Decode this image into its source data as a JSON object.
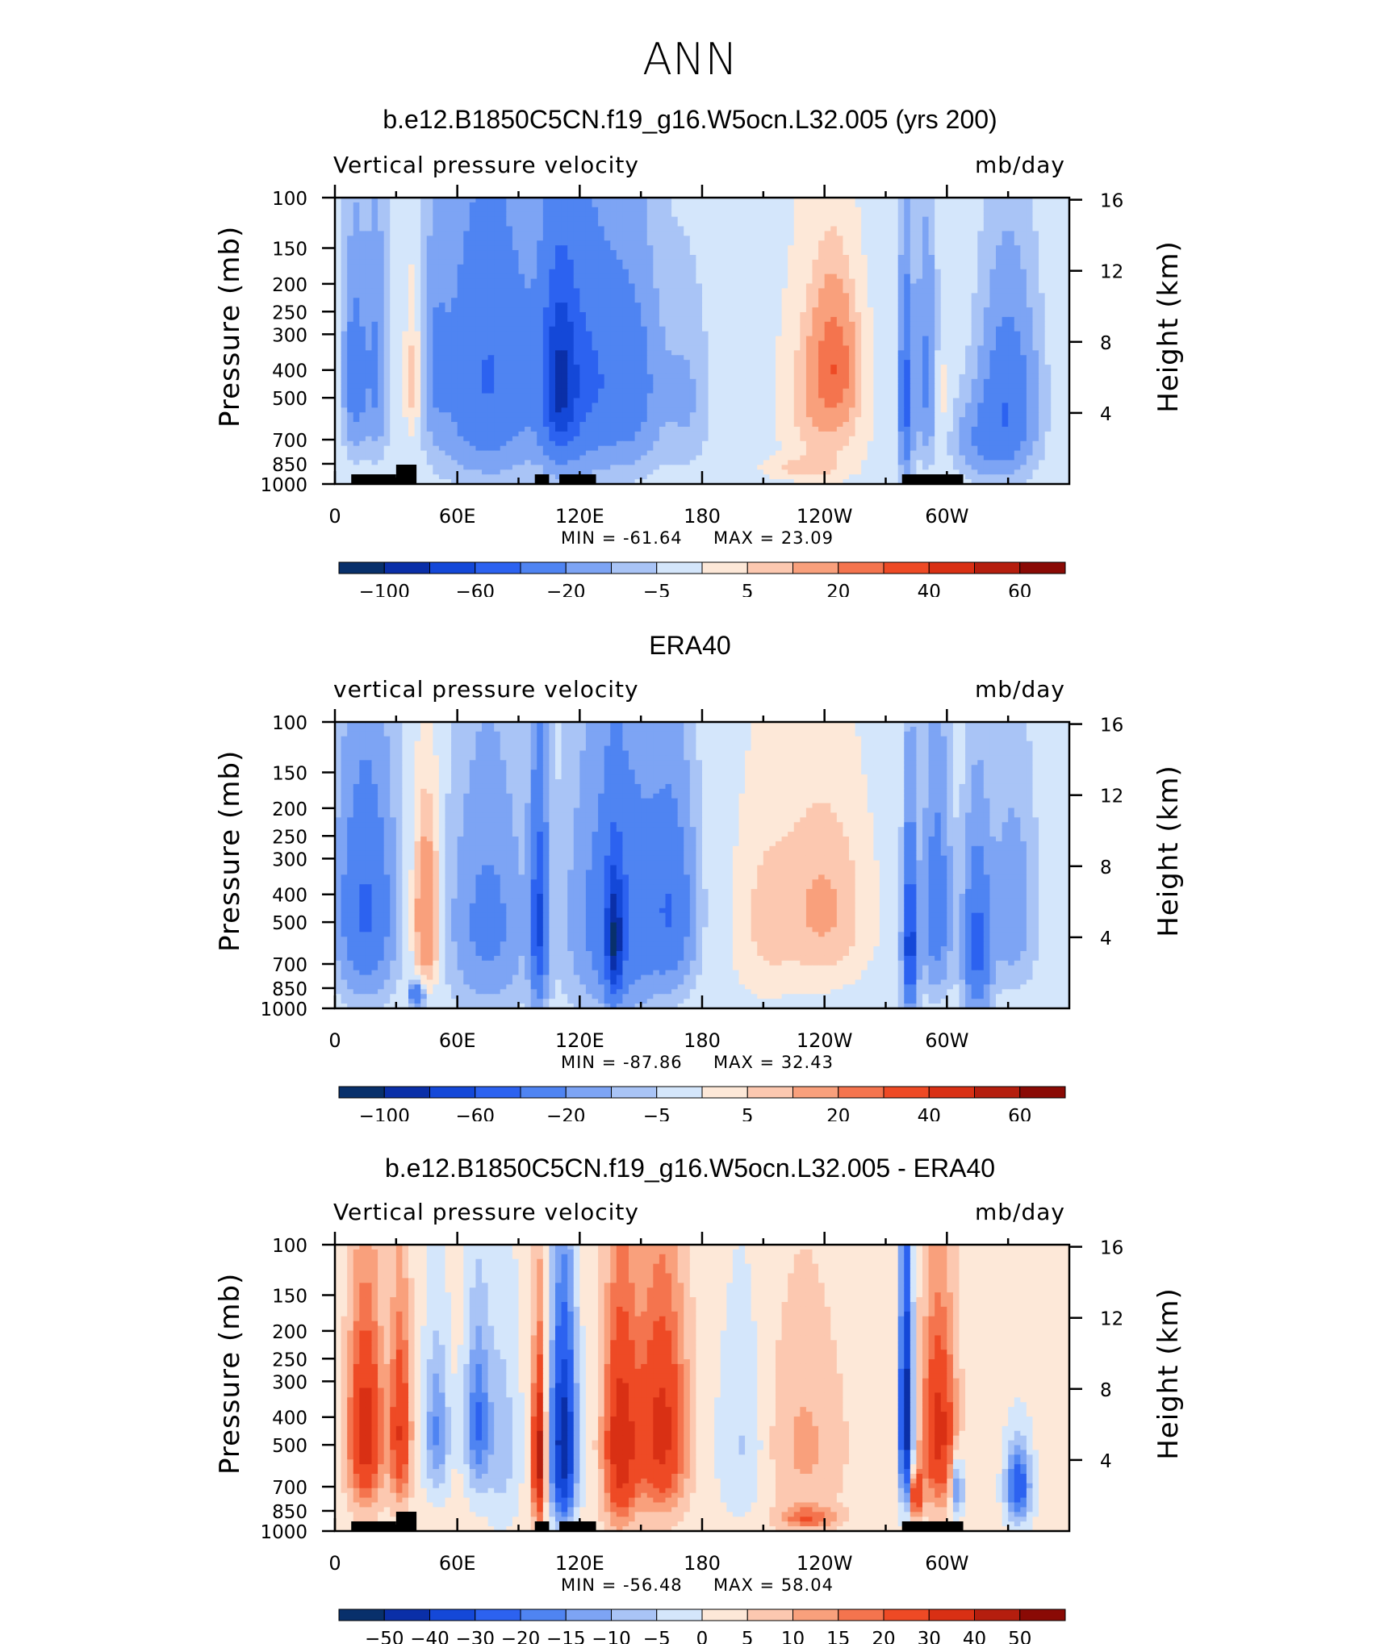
{
  "page_title": "ANN",
  "colors": {
    "palette_main": [
      "#08306b",
      "#0a2fa8",
      "#1448d8",
      "#2c62f0",
      "#4f84f2",
      "#7da4f4",
      "#a9c4f6",
      "#d4e6fb",
      "#fde8d8",
      "#fcc8b0",
      "#f9a07c",
      "#f4744e",
      "#ee4a25",
      "#d93014",
      "#b51e0e",
      "#8a0a05"
    ],
    "palette_diff": [
      "#08306b",
      "#0a2fa8",
      "#1448d8",
      "#2c62f0",
      "#4f84f2",
      "#7da4f4",
      "#a9c4f6",
      "#d4e6fb",
      "#fde8d8",
      "#fcc8b0",
      "#f9a07c",
      "#f4744e",
      "#ee4a25",
      "#d93014",
      "#b51e0e",
      "#8a0a05"
    ],
    "land": "#000000"
  },
  "chart_data": [
    {
      "type": "heatmap",
      "title": "b.e12.B1850C5CN.f19_g16.W5ocn.L32.005 (yrs 200)",
      "variable": "Vertical pressure velocity",
      "units": "mb/day",
      "ylabel_left": "Pressure (mb)",
      "ylabel_right": "Height (km)",
      "x_ticklabels": [
        "0",
        "60E",
        "120E",
        "180",
        "120W",
        "60W"
      ],
      "y_ticklabels": [
        "100",
        "150",
        "200",
        "250",
        "300",
        "400",
        "500",
        "700",
        "850",
        "1000"
      ],
      "height_ticklabels": [
        "16",
        "12",
        "8",
        "4"
      ],
      "min_label": "MIN = -61.64",
      "max_label": "MAX = 23.09",
      "colorbar_labels": [
        "-100",
        "-60",
        "-20",
        "-5",
        "5",
        "20",
        "40",
        "60"
      ],
      "palette": "main",
      "fields": [
        {
          "lon": 10,
          "p": 420,
          "w": 5,
          "h": 260,
          "v": -30
        },
        {
          "lon": 20,
          "p": 400,
          "w": 5,
          "h": 300,
          "v": -20
        },
        {
          "lon": 38,
          "p": 430,
          "w": 4,
          "h": 260,
          "v": 12
        },
        {
          "lon": 50,
          "p": 380,
          "w": 5,
          "h": 260,
          "v": -12
        },
        {
          "lon": 75,
          "p": 420,
          "w": 22,
          "h": 380,
          "v": -38
        },
        {
          "lon": 110,
          "p": 450,
          "w": 8,
          "h": 300,
          "v": -55
        },
        {
          "lon": 120,
          "p": 430,
          "w": 18,
          "h": 360,
          "v": -40
        },
        {
          "lon": 145,
          "p": 450,
          "w": 14,
          "h": 320,
          "v": -25
        },
        {
          "lon": 172,
          "p": 500,
          "w": 10,
          "h": 300,
          "v": -8
        },
        {
          "lon": 240,
          "p": 500,
          "w": 20,
          "h": 380,
          "v": 14
        },
        {
          "lon": 245,
          "p": 380,
          "w": 10,
          "h": 180,
          "v": 21
        },
        {
          "lon": 228,
          "p": 880,
          "w": 20,
          "h": 80,
          "v": 7
        },
        {
          "lon": 280,
          "p": 500,
          "w": 3,
          "h": 320,
          "v": -45
        },
        {
          "lon": 290,
          "p": 420,
          "w": 5,
          "h": 300,
          "v": -20
        },
        {
          "lon": 297,
          "p": 500,
          "w": 4,
          "h": 260,
          "v": 6
        },
        {
          "lon": 330,
          "p": 500,
          "w": 12,
          "h": 300,
          "v": -32
        },
        {
          "lon": 320,
          "p": 700,
          "w": 14,
          "h": 200,
          "v": -18
        }
      ],
      "land": [
        [
          8,
          30
        ],
        [
          30,
          40
        ],
        [
          98,
          105
        ],
        [
          110,
          128
        ],
        [
          278,
          308
        ]
      ],
      "land_raised": [
        [
          30,
          40
        ]
      ],
      "background": -3
    },
    {
      "type": "heatmap",
      "title": "ERA40",
      "variable": "vertical pressure velocity",
      "units": "mb/day",
      "ylabel_left": "Pressure (mb)",
      "ylabel_right": "Height (km)",
      "x_ticklabels": [
        "0",
        "60E",
        "120E",
        "180",
        "120W",
        "60W"
      ],
      "y_ticklabels": [
        "100",
        "150",
        "200",
        "250",
        "300",
        "400",
        "500",
        "700",
        "850",
        "1000"
      ],
      "height_ticklabels": [
        "16",
        "12",
        "8",
        "4"
      ],
      "min_label": "MIN = -87.86",
      "max_label": "MAX = 32.43",
      "colorbar_labels": [
        "-100",
        "-60",
        "-20",
        "-5",
        "5",
        "20",
        "40",
        "60"
      ],
      "palette": "main",
      "fields": [
        {
          "lon": 15,
          "p": 450,
          "w": 12,
          "h": 340,
          "v": -40
        },
        {
          "lon": 45,
          "p": 480,
          "w": 6,
          "h": 300,
          "v": 25
        },
        {
          "lon": 40,
          "p": 900,
          "w": 3,
          "h": 80,
          "v": -40
        },
        {
          "lon": 75,
          "p": 500,
          "w": 16,
          "h": 380,
          "v": -22
        },
        {
          "lon": 100,
          "p": 500,
          "w": 4,
          "h": 360,
          "v": -60
        },
        {
          "lon": 140,
          "p": 480,
          "w": 20,
          "h": 400,
          "v": -36
        },
        {
          "lon": 137,
          "p": 600,
          "w": 4,
          "h": 300,
          "v": -70
        },
        {
          "lon": 165,
          "p": 450,
          "w": 10,
          "h": 300,
          "v": -30
        },
        {
          "lon": 210,
          "p": 500,
          "w": 16,
          "h": 400,
          "v": 8
        },
        {
          "lon": 240,
          "p": 450,
          "w": 22,
          "h": 340,
          "v": 14
        },
        {
          "lon": 282,
          "p": 600,
          "w": 3,
          "h": 340,
          "v": -75
        },
        {
          "lon": 295,
          "p": 450,
          "w": 6,
          "h": 320,
          "v": -30
        },
        {
          "lon": 315,
          "p": 600,
          "w": 6,
          "h": 340,
          "v": -45
        },
        {
          "lon": 332,
          "p": 450,
          "w": 10,
          "h": 300,
          "v": -14
        }
      ],
      "land": [],
      "land_raised": [],
      "background": -3
    },
    {
      "type": "heatmap",
      "title": "b.e12.B1850C5CN.f19_g16.W5ocn.L32.005 - ERA40",
      "variable": "Vertical pressure velocity",
      "units": "mb/day",
      "ylabel_left": "Pressure (mb)",
      "ylabel_right": "Height (km)",
      "x_ticklabels": [
        "0",
        "60E",
        "120E",
        "180",
        "120W",
        "60W"
      ],
      "y_ticklabels": [
        "100",
        "150",
        "200",
        "250",
        "300",
        "400",
        "500",
        "700",
        "850",
        "1000"
      ],
      "height_ticklabels": [
        "16",
        "12",
        "8",
        "4"
      ],
      "min_label": "MIN = -56.48",
      "max_label": "MAX = 58.04",
      "colorbar_labels": [
        "-50",
        "-40",
        "-30",
        "-20",
        "-15",
        "-10",
        "-5",
        "0",
        "5",
        "10",
        "15",
        "20",
        "30",
        "40",
        "50"
      ],
      "palette": "diff",
      "fields": [
        {
          "lon": 15,
          "p": 450,
          "w": 8,
          "h": 320,
          "v": 35
        },
        {
          "lon": 32,
          "p": 450,
          "w": 5,
          "h": 320,
          "v": 28
        },
        {
          "lon": 50,
          "p": 450,
          "w": 6,
          "h": 260,
          "v": -18
        },
        {
          "lon": 70,
          "p": 420,
          "w": 6,
          "h": 280,
          "v": -22
        },
        {
          "lon": 82,
          "p": 500,
          "w": 8,
          "h": 400,
          "v": -10
        },
        {
          "lon": 100,
          "p": 550,
          "w": 3,
          "h": 340,
          "v": 45
        },
        {
          "lon": 112,
          "p": 500,
          "w": 6,
          "h": 380,
          "v": -50
        },
        {
          "lon": 140,
          "p": 500,
          "w": 8,
          "h": 400,
          "v": 35
        },
        {
          "lon": 160,
          "p": 450,
          "w": 12,
          "h": 360,
          "v": 32
        },
        {
          "lon": 200,
          "p": 500,
          "w": 12,
          "h": 360,
          "v": -8
        },
        {
          "lon": 230,
          "p": 500,
          "w": 20,
          "h": 380,
          "v": 9
        },
        {
          "lon": 232,
          "p": 900,
          "w": 14,
          "h": 80,
          "v": 16
        },
        {
          "lon": 280,
          "p": 400,
          "w": 3,
          "h": 360,
          "v": -50
        },
        {
          "lon": 296,
          "p": 450,
          "w": 8,
          "h": 320,
          "v": 32
        },
        {
          "lon": 305,
          "p": 700,
          "w": 3,
          "h": 160,
          "v": -22
        },
        {
          "lon": 285,
          "p": 750,
          "w": 3,
          "h": 140,
          "v": 30
        },
        {
          "lon": 335,
          "p": 700,
          "w": 6,
          "h": 220,
          "v": -28
        }
      ],
      "land": [
        [
          8,
          30
        ],
        [
          30,
          40
        ],
        [
          98,
          105
        ],
        [
          110,
          128
        ],
        [
          278,
          308
        ]
      ],
      "land_raised": [
        [
          30,
          40
        ]
      ],
      "background": 2
    }
  ]
}
